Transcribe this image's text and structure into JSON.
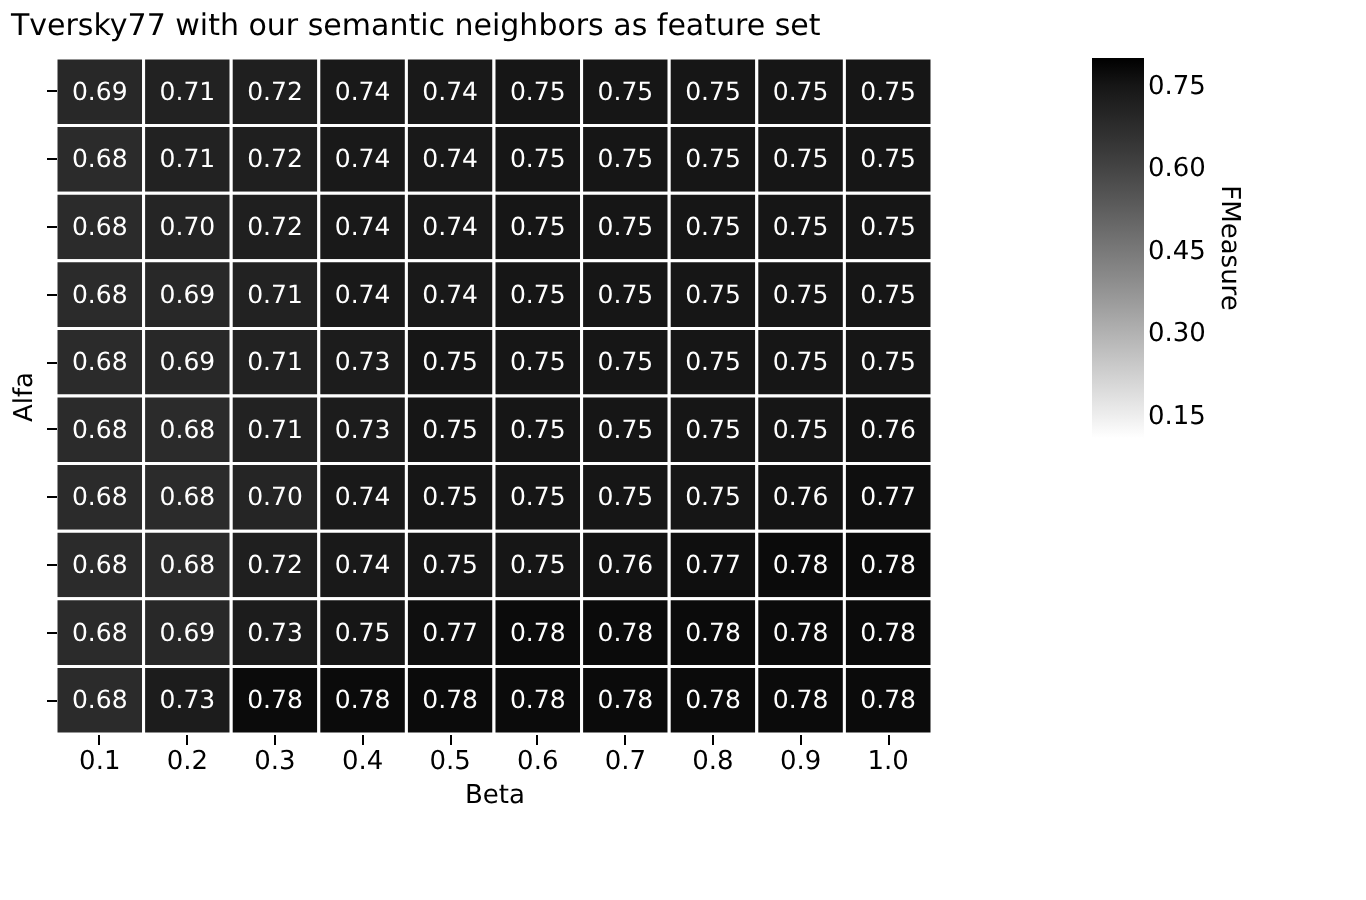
{
  "chart_data": {
    "type": "heatmap",
    "title": "Tversky77 with our semantic neighbors as feature set",
    "xlabel": "Beta",
    "ylabel": "Alfa",
    "clabel": "FMeasure",
    "categories": [
      "0.1",
      "0.2",
      "0.3",
      "0.4",
      "0.5",
      "0.6",
      "0.7",
      "0.8",
      "0.9",
      "1.0"
    ],
    "y_categories": [
      null,
      null,
      null,
      null,
      null,
      null,
      null,
      null,
      null,
      null
    ],
    "cells": [
      [
        0.69,
        0.71,
        0.72,
        0.74,
        0.74,
        0.75,
        0.75,
        0.75,
        0.75,
        0.75
      ],
      [
        0.68,
        0.71,
        0.72,
        0.74,
        0.74,
        0.75,
        0.75,
        0.75,
        0.75,
        0.75
      ],
      [
        0.68,
        0.7,
        0.72,
        0.74,
        0.74,
        0.75,
        0.75,
        0.75,
        0.75,
        0.75
      ],
      [
        0.68,
        0.69,
        0.71,
        0.74,
        0.74,
        0.75,
        0.75,
        0.75,
        0.75,
        0.75
      ],
      [
        0.68,
        0.69,
        0.71,
        0.73,
        0.75,
        0.75,
        0.75,
        0.75,
        0.75,
        0.75
      ],
      [
        0.68,
        0.68,
        0.71,
        0.73,
        0.75,
        0.75,
        0.75,
        0.75,
        0.75,
        0.76
      ],
      [
        0.68,
        0.68,
        0.7,
        0.74,
        0.75,
        0.75,
        0.75,
        0.75,
        0.76,
        0.77
      ],
      [
        0.68,
        0.68,
        0.72,
        0.74,
        0.75,
        0.75,
        0.76,
        0.77,
        0.78,
        0.78
      ],
      [
        0.68,
        0.69,
        0.73,
        0.75,
        0.77,
        0.78,
        0.78,
        0.78,
        0.78,
        0.78
      ],
      [
        0.68,
        0.73,
        0.78,
        0.78,
        0.78,
        0.78,
        0.78,
        0.78,
        0.78,
        0.78
      ]
    ],
    "cell_labels": [
      [
        "0.69",
        "0.71",
        "0.72",
        "0.74",
        "0.74",
        "0.75",
        "0.75",
        "0.75",
        "0.75",
        "0.75"
      ],
      [
        "0.68",
        "0.71",
        "0.72",
        "0.74",
        "0.74",
        "0.75",
        "0.75",
        "0.75",
        "0.75",
        "0.75"
      ],
      [
        "0.68",
        "0.70",
        "0.72",
        "0.74",
        "0.74",
        "0.75",
        "0.75",
        "0.75",
        "0.75",
        "0.75"
      ],
      [
        "0.68",
        "0.69",
        "0.71",
        "0.74",
        "0.74",
        "0.75",
        "0.75",
        "0.75",
        "0.75",
        "0.75"
      ],
      [
        "0.68",
        "0.69",
        "0.71",
        "0.73",
        "0.75",
        "0.75",
        "0.75",
        "0.75",
        "0.75",
        "0.75"
      ],
      [
        "0.68",
        "0.68",
        "0.71",
        "0.73",
        "0.75",
        "0.75",
        "0.75",
        "0.75",
        "0.75",
        "0.76"
      ],
      [
        "0.68",
        "0.68",
        "0.70",
        "0.74",
        "0.75",
        "0.75",
        "0.75",
        "0.75",
        "0.76",
        "0.77"
      ],
      [
        "0.68",
        "0.68",
        "0.72",
        "0.74",
        "0.75",
        "0.75",
        "0.76",
        "0.77",
        "0.78",
        "0.78"
      ],
      [
        "0.68",
        "0.69",
        "0.73",
        "0.75",
        "0.77",
        "0.78",
        "0.78",
        "0.78",
        "0.78",
        "0.78"
      ],
      [
        "0.68",
        "0.73",
        "0.78",
        "0.78",
        "0.78",
        "0.78",
        "0.78",
        "0.78",
        "0.78",
        "0.78"
      ]
    ],
    "data_labels": true,
    "tick_labels": "x",
    "clim": [
      0.11,
      0.8
    ],
    "cticks": [
      0.15,
      {
        "value": 0.3,
        "label": "0.30"
      },
      0.45,
      {
        "value": 0.6,
        "label": "0.60"
      },
      0.75
    ]
  }
}
